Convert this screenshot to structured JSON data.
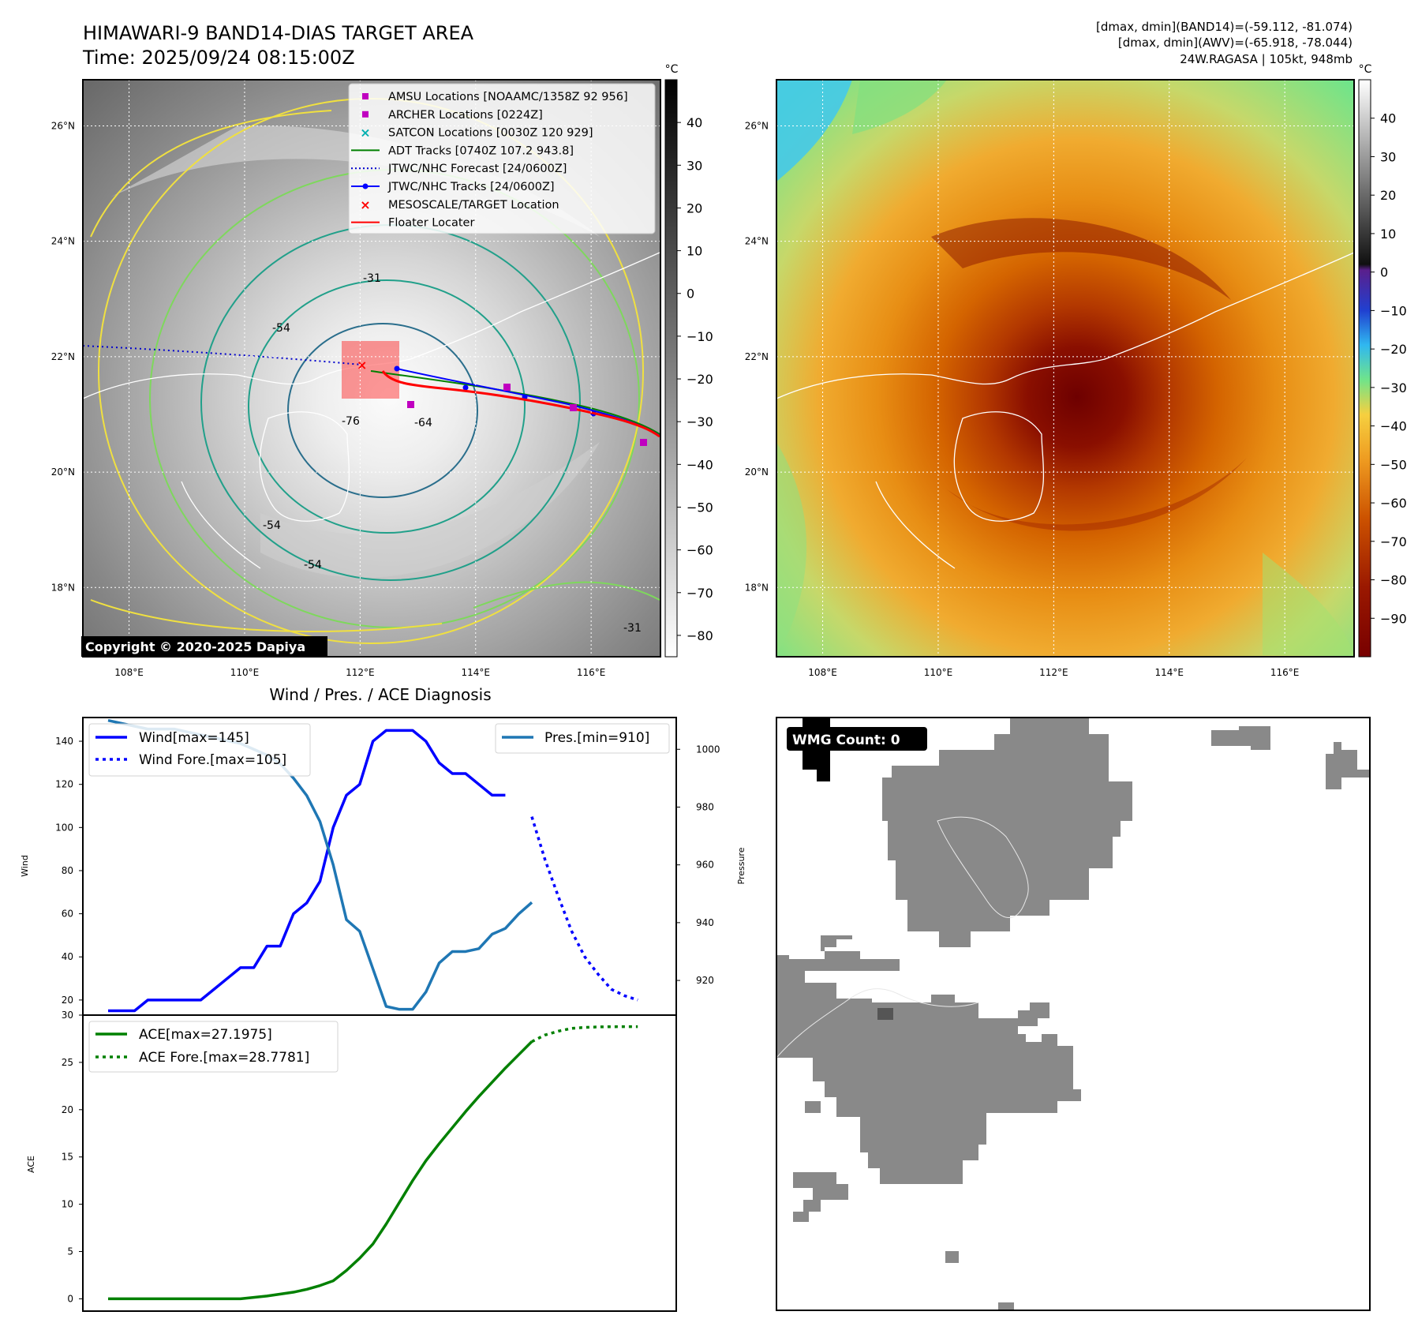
{
  "header": {
    "title_line1": "HIMAWARI-9 BAND14-DIAS TARGET AREA",
    "title_line2": "Time: 2025/09/24 08:15:00Z",
    "info_line1": "[dmax, dmin](BAND14)=(-59.112, -81.074)",
    "info_line2": "[dmax, dmin](AWV)=(-65.918, -78.044)",
    "info_line3": "24W.RAGASA | 105kt, 948mb"
  },
  "map_axes": {
    "lon_labels": [
      "108°E",
      "110°E",
      "112°E",
      "114°E",
      "116°E"
    ],
    "lat_labels": [
      "26°N",
      "24°N",
      "22°N",
      "20°N",
      "18°N"
    ],
    "lon_values": [
      108,
      110,
      112,
      114,
      116
    ],
    "lat_values": [
      26,
      24,
      22,
      20,
      18
    ],
    "lon_range": [
      107.2,
      117.2
    ],
    "lat_range": [
      16.8,
      26.8
    ]
  },
  "colorbar_left": {
    "unit": "°C",
    "ticks": [
      "40",
      "30",
      "20",
      "10",
      "0",
      "−10",
      "−20",
      "−30",
      "−40",
      "−50",
      "−60",
      "−70",
      "−80"
    ],
    "tick_values": [
      40,
      30,
      20,
      10,
      0,
      -10,
      -20,
      -30,
      -40,
      -50,
      -60,
      -70,
      -80
    ],
    "range": [
      -85,
      50
    ]
  },
  "colorbar_right": {
    "unit": "°C",
    "ticks": [
      "40",
      "30",
      "20",
      "10",
      "0",
      "−10",
      "−20",
      "−30",
      "−40",
      "−50",
      "−60",
      "−70",
      "−80",
      "−90"
    ],
    "tick_values": [
      40,
      30,
      20,
      10,
      0,
      -10,
      -20,
      -30,
      -40,
      -50,
      -60,
      -70,
      -80,
      -90
    ],
    "range": [
      -100,
      50
    ]
  },
  "legend_map": [
    {
      "label": "AMSU Locations [NOAAMC/1358Z 92 956]",
      "color": "#c000c0",
      "marker": "square"
    },
    {
      "label": "ARCHER Locations [0224Z]",
      "color": "#c000c0",
      "marker": "square"
    },
    {
      "label": "SATCON Locations [0030Z 120 929]",
      "color": "#00b0b0",
      "marker": "x"
    },
    {
      "label": "ADT Tracks [0740Z 107.2 943.8]",
      "color": "#008000",
      "marker": "line"
    },
    {
      "label": "JTWC/NHC Forecast [24/0600Z]",
      "color": "#0000cc",
      "marker": "dotted"
    },
    {
      "label": "JTWC/NHC Tracks [24/0600Z]",
      "color": "#0000ff",
      "marker": "line-dot"
    },
    {
      "label": "MESOSCALE/TARGET Location",
      "color": "#ff0000",
      "marker": "x"
    },
    {
      "label": "Floater Locater",
      "color": "#ff0000",
      "marker": "line"
    }
  ],
  "contour_labels": [
    "-31",
    "-54",
    "-64",
    "-76",
    "-54",
    "-31",
    "-54"
  ],
  "copyright": "Copyright © 2020-2025 Dapiya",
  "diag_title": "Wind / Pres. / ACE Diagnosis",
  "chart_data": [
    {
      "type": "line",
      "title": "Wind / Pres. / ACE Diagnosis",
      "ylabel": "Wind",
      "ylabel_right": "Pressure",
      "ylim": [
        13,
        151
      ],
      "ylim_right": [
        908,
        1011
      ],
      "x_range": [
        0,
        41
      ],
      "yticks": [
        20,
        40,
        60,
        80,
        100,
        120,
        140
      ],
      "yticks_right": [
        920,
        940,
        960,
        980,
        1000
      ],
      "series": [
        {
          "name": "Wind[max=145]",
          "color": "#0000ff",
          "style": "solid",
          "x": [
            0,
            2,
            3,
            4,
            5,
            6,
            7,
            8,
            9,
            10,
            11,
            12,
            13,
            14,
            15,
            16,
            17,
            18,
            19,
            20,
            21,
            22,
            23,
            24,
            25,
            26,
            27,
            28,
            29,
            30
          ],
          "values": [
            15,
            15,
            20,
            20,
            20,
            20,
            20,
            25,
            30,
            35,
            35,
            45,
            45,
            60,
            65,
            75,
            100,
            115,
            120,
            140,
            145,
            145,
            145,
            140,
            130,
            125,
            125,
            120,
            115,
            115
          ]
        },
        {
          "name": "Wind Fore.[max=105]",
          "color": "#0000ff",
          "style": "dotted",
          "x": [
            32,
            33,
            34,
            35,
            36,
            37,
            38,
            39,
            40
          ],
          "values": [
            105,
            85,
            68,
            52,
            40,
            32,
            25,
            22,
            20
          ]
        },
        {
          "name": "Pres.[min=910]",
          "color": "#1f77b4",
          "style": "solid",
          "x": [
            0,
            1,
            2,
            3,
            4,
            5,
            6,
            7,
            8,
            9,
            10,
            11,
            12,
            13,
            14,
            15,
            16,
            17,
            18,
            19,
            20,
            21,
            22,
            23,
            24,
            25,
            26,
            27,
            28,
            29,
            30,
            31,
            32
          ],
          "values": [
            1010,
            1009,
            1008,
            1007,
            1007,
            1007,
            1006,
            1005,
            1004,
            1003,
            1002,
            1000,
            998,
            995,
            990,
            984,
            975,
            960,
            941,
            937,
            924,
            911,
            910,
            910,
            916,
            926,
            930,
            930,
            931,
            936,
            938,
            943,
            947
          ]
        }
      ]
    },
    {
      "type": "line",
      "ylabel": "ACE",
      "ylim": [
        -1.3,
        30
      ],
      "x_range": [
        0,
        41
      ],
      "yticks": [
        0,
        5,
        10,
        15,
        20,
        25,
        30
      ],
      "series": [
        {
          "name": "ACE[max=27.1975]",
          "color": "#008000",
          "style": "solid",
          "x": [
            0,
            2,
            4,
            6,
            8,
            10,
            12,
            14,
            15,
            16,
            17,
            18,
            19,
            20,
            21,
            22,
            23,
            24,
            25,
            26,
            27,
            28,
            29,
            30,
            31,
            32
          ],
          "values": [
            0,
            0,
            0,
            0,
            0,
            0,
            0.3,
            0.7,
            1,
            1.4,
            1.9,
            3,
            4.3,
            5.8,
            7.9,
            10.2,
            12.5,
            14.6,
            16.4,
            18.1,
            19.8,
            21.4,
            22.9,
            24.4,
            25.8,
            27.2
          ]
        },
        {
          "name": "ACE Fore.[max=28.7781]",
          "color": "#008000",
          "style": "dotted",
          "x": [
            32,
            33,
            34,
            35,
            36,
            37,
            38,
            39,
            40
          ],
          "values": [
            27.2,
            27.9,
            28.3,
            28.6,
            28.7,
            28.75,
            28.77,
            28.78,
            28.78
          ]
        }
      ]
    }
  ],
  "wmg_label": "WMG Count: 0",
  "colors": {
    "wind": "#0000ff",
    "pres": "#1f77b4",
    "ace": "#008000",
    "wmg_gray": "#898989"
  }
}
